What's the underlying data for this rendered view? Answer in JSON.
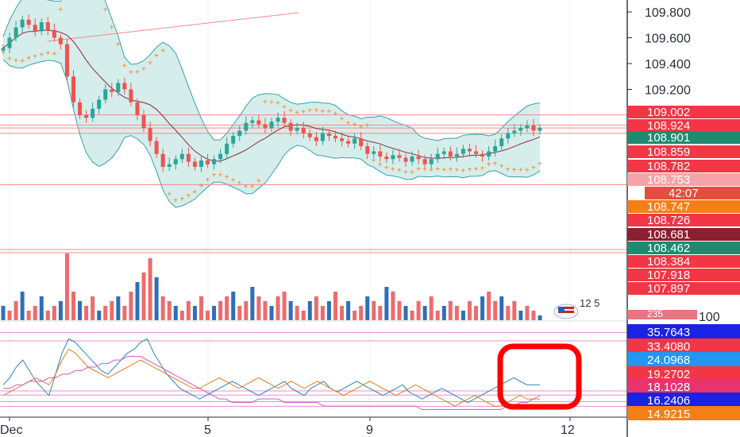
{
  "chart_data": [
    {
      "type": "candlestick",
      "pane": "price",
      "x_tick_labels": [
        "Dec",
        "5",
        "9",
        "12"
      ],
      "y_tick_labels": [
        "109.800",
        "109.600",
        "109.400",
        "109.200"
      ],
      "ylim": [
        108.3,
        109.9
      ],
      "indicators": [
        "bollinger-bands",
        "moving-average",
        "parabolic-sar",
        "trend-line"
      ],
      "series": [
        {
          "name": "",
          "kind": "ohlc-close-approx",
          "values": [
            109.52,
            109.6,
            109.68,
            109.74,
            109.7,
            109.65,
            109.72,
            109.66,
            109.6,
            109.55,
            109.3,
            109.1,
            109.0,
            108.98,
            109.05,
            109.12,
            109.2,
            109.18,
            109.25,
            109.2,
            109.1,
            109.0,
            108.9,
            108.8,
            108.7,
            108.6,
            108.62,
            108.66,
            108.7,
            108.64,
            108.6,
            108.65,
            108.62,
            108.66,
            108.7,
            108.78,
            108.84,
            108.88,
            108.94,
            108.96,
            108.93,
            108.9,
            108.95,
            108.98,
            108.94,
            108.88,
            108.9,
            108.86,
            108.83,
            108.8,
            108.86,
            108.84,
            108.82,
            108.8,
            108.78,
            108.82,
            108.76,
            108.7,
            108.72,
            108.68,
            108.66,
            108.69,
            108.67,
            108.64,
            108.68,
            108.66,
            108.62,
            108.66,
            108.7,
            108.72,
            108.68,
            108.7,
            108.74,
            108.72,
            108.7,
            108.68,
            108.72,
            108.76,
            108.82,
            108.86,
            108.88,
            108.9,
            108.92,
            108.88,
            108.9
          ]
        }
      ]
    },
    {
      "type": "bar",
      "pane": "volume",
      "values": [
        3,
        2,
        4,
        6,
        2,
        3,
        5,
        2,
        3,
        4,
        14,
        6,
        4,
        3,
        5,
        2,
        3,
        4,
        5,
        3,
        6,
        8,
        10,
        13,
        9,
        5,
        4,
        3,
        2,
        4,
        3,
        5,
        2,
        3,
        4,
        5,
        6,
        3,
        4,
        7,
        5,
        4,
        3,
        5,
        6,
        4,
        3,
        2,
        4,
        5,
        3,
        4,
        6,
        3,
        4,
        2,
        3,
        5,
        4,
        3,
        7,
        6,
        4,
        3,
        2,
        4,
        3,
        5,
        2,
        3,
        4,
        3,
        2,
        4,
        3,
        5,
        6,
        4,
        5,
        3,
        4,
        2,
        3,
        2,
        1
      ]
    },
    {
      "type": "line",
      "pane": "oscillator",
      "series": [
        {
          "name": "",
          "color": "#2e86c1",
          "values": [
            21,
            23,
            26,
            28,
            25,
            22,
            20,
            18,
            24,
            30,
            34,
            33,
            31,
            29,
            27,
            25,
            24,
            26,
            28,
            30,
            31,
            33,
            34,
            30,
            27,
            24,
            22,
            20,
            19,
            18,
            17,
            18,
            19,
            20,
            21,
            22,
            21,
            20,
            19,
            18,
            19,
            20,
            21,
            22,
            20,
            19,
            18,
            20,
            21,
            22,
            20,
            19,
            20,
            21,
            22,
            21,
            20,
            19,
            18,
            19,
            20,
            21,
            19,
            18,
            17,
            18,
            19,
            20,
            19,
            18,
            17,
            16,
            17,
            18,
            19,
            20,
            21,
            22,
            23,
            22,
            21,
            21,
            21
          ]
        },
        {
          "name": "",
          "color": "#e67e22",
          "values": [
            18,
            19,
            20,
            21,
            22,
            23,
            22,
            21,
            24,
            28,
            31,
            30,
            28,
            26,
            25,
            24,
            23,
            24,
            25,
            26,
            27,
            28,
            27,
            26,
            25,
            24,
            23,
            22,
            21,
            20,
            20,
            21,
            22,
            23,
            22,
            21,
            20,
            21,
            22,
            23,
            22,
            21,
            20,
            21,
            22,
            21,
            20,
            21,
            22,
            21,
            20,
            19,
            18,
            19,
            20,
            21,
            22,
            21,
            20,
            19,
            18,
            19,
            20,
            21,
            20,
            19,
            18,
            17,
            16,
            15,
            16,
            17,
            18,
            17,
            16,
            15,
            15,
            16,
            17,
            18,
            17,
            17,
            18
          ]
        },
        {
          "name": "",
          "color": "#d35dbf",
          "values": [
            20,
            20,
            21,
            21,
            22,
            22,
            22,
            23,
            23,
            24,
            24,
            25,
            25,
            26,
            26,
            27,
            27,
            28,
            28,
            29,
            29,
            29,
            28,
            27,
            26,
            25,
            24,
            23,
            22,
            21,
            20,
            19,
            18,
            17,
            17,
            16,
            16,
            16,
            16,
            17,
            17,
            17,
            17,
            16,
            16,
            16,
            16,
            16,
            16,
            15,
            15,
            15,
            15,
            15,
            15,
            15,
            15,
            15,
            15,
            15,
            15,
            15,
            15,
            15,
            14,
            14,
            14,
            14,
            14,
            14,
            14,
            14,
            14,
            14,
            14,
            14,
            14,
            15,
            15,
            16,
            16,
            17,
            17
          ]
        }
      ],
      "ylim": [
        13,
        37
      ]
    }
  ],
  "price_labels": [
    {
      "text": "109.002",
      "bg": "#f23645",
      "fg": "#ffffff"
    },
    {
      "text": "108.924",
      "bg": "#f23645",
      "fg": "#ffffff"
    },
    {
      "text": "108.901",
      "bg": "#1f8a70",
      "fg": "#ffffff"
    },
    {
      "text": "108.859",
      "bg": "#f23645",
      "fg": "#ffffff"
    },
    {
      "text": "108.782",
      "bg": "#f23645",
      "fg": "#ffffff"
    },
    {
      "text": "108.753",
      "bg": "#f5a3a8",
      "fg": "#ffffff"
    },
    {
      "text": "42:07",
      "bg": "#e74c3c",
      "fg": "#ffffff"
    },
    {
      "text": "108.747",
      "bg": "#f57f17",
      "fg": "#ffffff"
    },
    {
      "text": "108.726",
      "bg": "#f23645",
      "fg": "#ffffff"
    },
    {
      "text": "108.681",
      "bg": "#8b2030",
      "fg": "#ffffff"
    },
    {
      "text": "108.462",
      "bg": "#1f8a70",
      "fg": "#ffffff"
    },
    {
      "text": "108.384",
      "bg": "#f23645",
      "fg": "#ffffff"
    },
    {
      "text": "107.918",
      "bg": "#f23645",
      "fg": "#ffffff"
    },
    {
      "text": "107.897",
      "bg": "#f23645",
      "fg": "#ffffff"
    },
    {
      "text": "235",
      "bg": "#e8757f",
      "fg": "#ffffff"
    },
    {
      "text": "35.7643",
      "bg": "#1a22e6",
      "fg": "#ffffff"
    },
    {
      "text": "33.4080",
      "bg": "#f23645",
      "fg": "#ffffff"
    },
    {
      "text": "24.0968",
      "bg": "#2196f3",
      "fg": "#ffffff"
    },
    {
      "text": "19.2702",
      "bg": "#f23645",
      "fg": "#ffffff"
    },
    {
      "text": "18.1028",
      "bg": "#e8336e",
      "fg": "#ffffff"
    },
    {
      "text": "16.2406",
      "bg": "#1a22e6",
      "fg": "#ffffff"
    },
    {
      "text": "14.9215",
      "bg": "#f57f17",
      "fg": "#ffffff"
    }
  ],
  "hidden_tick": "100",
  "volume_badge_text": "12 5",
  "colors": {
    "up": "#26a69a",
    "down": "#ef5350",
    "band": "#b2dfdb",
    "band_line": "#3aa0b0",
    "highlight": "#ff0000",
    "sar": "#f57f17"
  }
}
